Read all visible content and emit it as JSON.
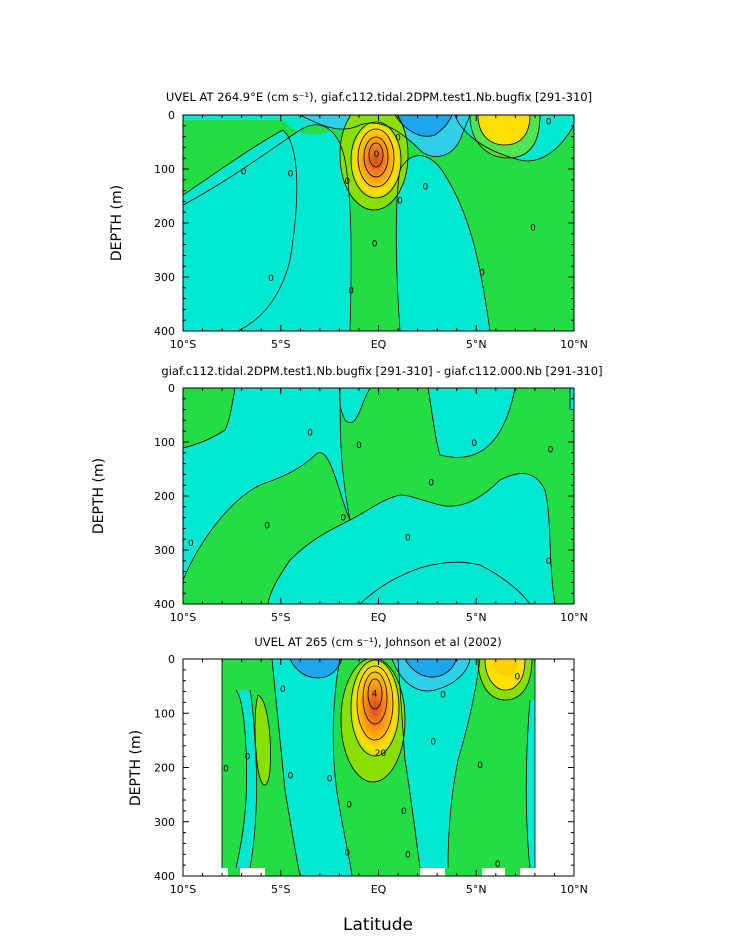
{
  "figure": {
    "xlabel": "Latitude",
    "colors": {
      "deep_blue": "#1aa7ee",
      "light_blue": "#2ed0e8",
      "cyan": "#00e8d0",
      "green": "#22dd44",
      "lime": "#88e000",
      "yellow": "#ffe000",
      "orange_light": "#ffb000",
      "orange": "#f08020",
      "red_orange": "#e06020"
    }
  },
  "chart_data": [
    {
      "type": "heatmap",
      "title": "UVEL AT 264.9°E (cm s⁻¹), giaf.c112.tidal.2DPM.test1.Nb.bugfix [291-310]",
      "xlabel": "",
      "ylabel": "DEPTH (m)",
      "x_ticks": [
        "10°S",
        "5°S",
        "EQ",
        "5°N",
        "10°N"
      ],
      "y_ticks": [
        "0",
        "100",
        "200",
        "300",
        "400"
      ],
      "xlim": [
        -10,
        10
      ],
      "ylim": [
        400,
        0
      ],
      "contour_labels": [
        {
          "text": "0",
          "lat": -6.9,
          "depth": 105
        },
        {
          "text": "0",
          "lat": -4.5,
          "depth": 108
        },
        {
          "text": "0",
          "lat": -5.5,
          "depth": 302
        },
        {
          "text": "0",
          "lat": -1.6,
          "depth": 122
        },
        {
          "text": "0",
          "lat": -1.4,
          "depth": 325
        },
        {
          "text": "0",
          "lat": -0.2,
          "depth": 238
        },
        {
          "text": "0",
          "lat": 1.1,
          "depth": 158
        },
        {
          "text": "0",
          "lat": 2.4,
          "depth": 132
        },
        {
          "text": "0",
          "lat": 5.3,
          "depth": 292
        },
        {
          "text": "0",
          "lat": 7.9,
          "depth": 208
        },
        {
          "text": "0",
          "lat": 8.7,
          "depth": 12
        },
        {
          "text": "0",
          "lat": 1.0,
          "depth": 42
        },
        {
          "text": "0",
          "lat": -0.1,
          "depth": 72
        }
      ]
    },
    {
      "type": "heatmap",
      "title": "giaf.c112.tidal.2DPM.test1.Nb.bugfix [291-310] - giaf.c112.000.Nb [291-310]",
      "xlabel": "",
      "ylabel": "DEPTH (m)",
      "x_ticks": [
        "10°S",
        "5°S",
        "EQ",
        "5°N",
        "10°N"
      ],
      "y_ticks": [
        "0",
        "100",
        "200",
        "300",
        "400"
      ],
      "xlim": [
        -10,
        10
      ],
      "ylim": [
        400,
        0
      ],
      "contour_labels": [
        {
          "text": "0",
          "lat": -3.5,
          "depth": 82
        },
        {
          "text": "0",
          "lat": -1.0,
          "depth": 106
        },
        {
          "text": "0",
          "lat": -1.8,
          "depth": 240
        },
        {
          "text": "0",
          "lat": -5.7,
          "depth": 255
        },
        {
          "text": "0",
          "lat": -9.6,
          "depth": 287
        },
        {
          "text": "0",
          "lat": 1.5,
          "depth": 277
        },
        {
          "text": "0",
          "lat": 2.7,
          "depth": 175
        },
        {
          "text": "0",
          "lat": 4.9,
          "depth": 102
        },
        {
          "text": "0",
          "lat": 8.8,
          "depth": 114
        },
        {
          "text": "0",
          "lat": 8.7,
          "depth": 320
        }
      ]
    },
    {
      "type": "heatmap",
      "title": "UVEL AT 265 (cm s⁻¹), Johnson et al (2002)",
      "xlabel": "Latitude",
      "ylabel": "DEPTH (m)",
      "x_ticks": [
        "10°S",
        "5°S",
        "EQ",
        "5°N",
        "10°N"
      ],
      "y_ticks": [
        "0",
        "100",
        "200",
        "300",
        "400"
      ],
      "xlim": [
        -10,
        10
      ],
      "ylim": [
        400,
        0
      ],
      "data_extent_lat": [
        -8,
        8
      ],
      "contour_labels": [
        {
          "text": "0",
          "lat": -7.8,
          "depth": 202
        },
        {
          "text": "0",
          "lat": -6.7,
          "depth": 180
        },
        {
          "text": "0",
          "lat": -4.9,
          "depth": 55
        },
        {
          "text": "0",
          "lat": -4.5,
          "depth": 215
        },
        {
          "text": "0",
          "lat": -2.5,
          "depth": 220
        },
        {
          "text": "0",
          "lat": -1.5,
          "depth": 268
        },
        {
          "text": "0",
          "lat": -1.6,
          "depth": 357
        },
        {
          "text": "0",
          "lat": 1.3,
          "depth": 280
        },
        {
          "text": "0",
          "lat": 1.5,
          "depth": 360
        },
        {
          "text": "0",
          "lat": 2.8,
          "depth": 152
        },
        {
          "text": "0",
          "lat": 5.2,
          "depth": 195
        },
        {
          "text": "0",
          "lat": 6.1,
          "depth": 378
        },
        {
          "text": "0",
          "lat": 3.3,
          "depth": 65
        },
        {
          "text": "0",
          "lat": 7.1,
          "depth": 32
        },
        {
          "text": "20",
          "lat": 0.1,
          "depth": 173
        },
        {
          "text": "4",
          "lat": -0.2,
          "depth": 64
        }
      ]
    }
  ]
}
